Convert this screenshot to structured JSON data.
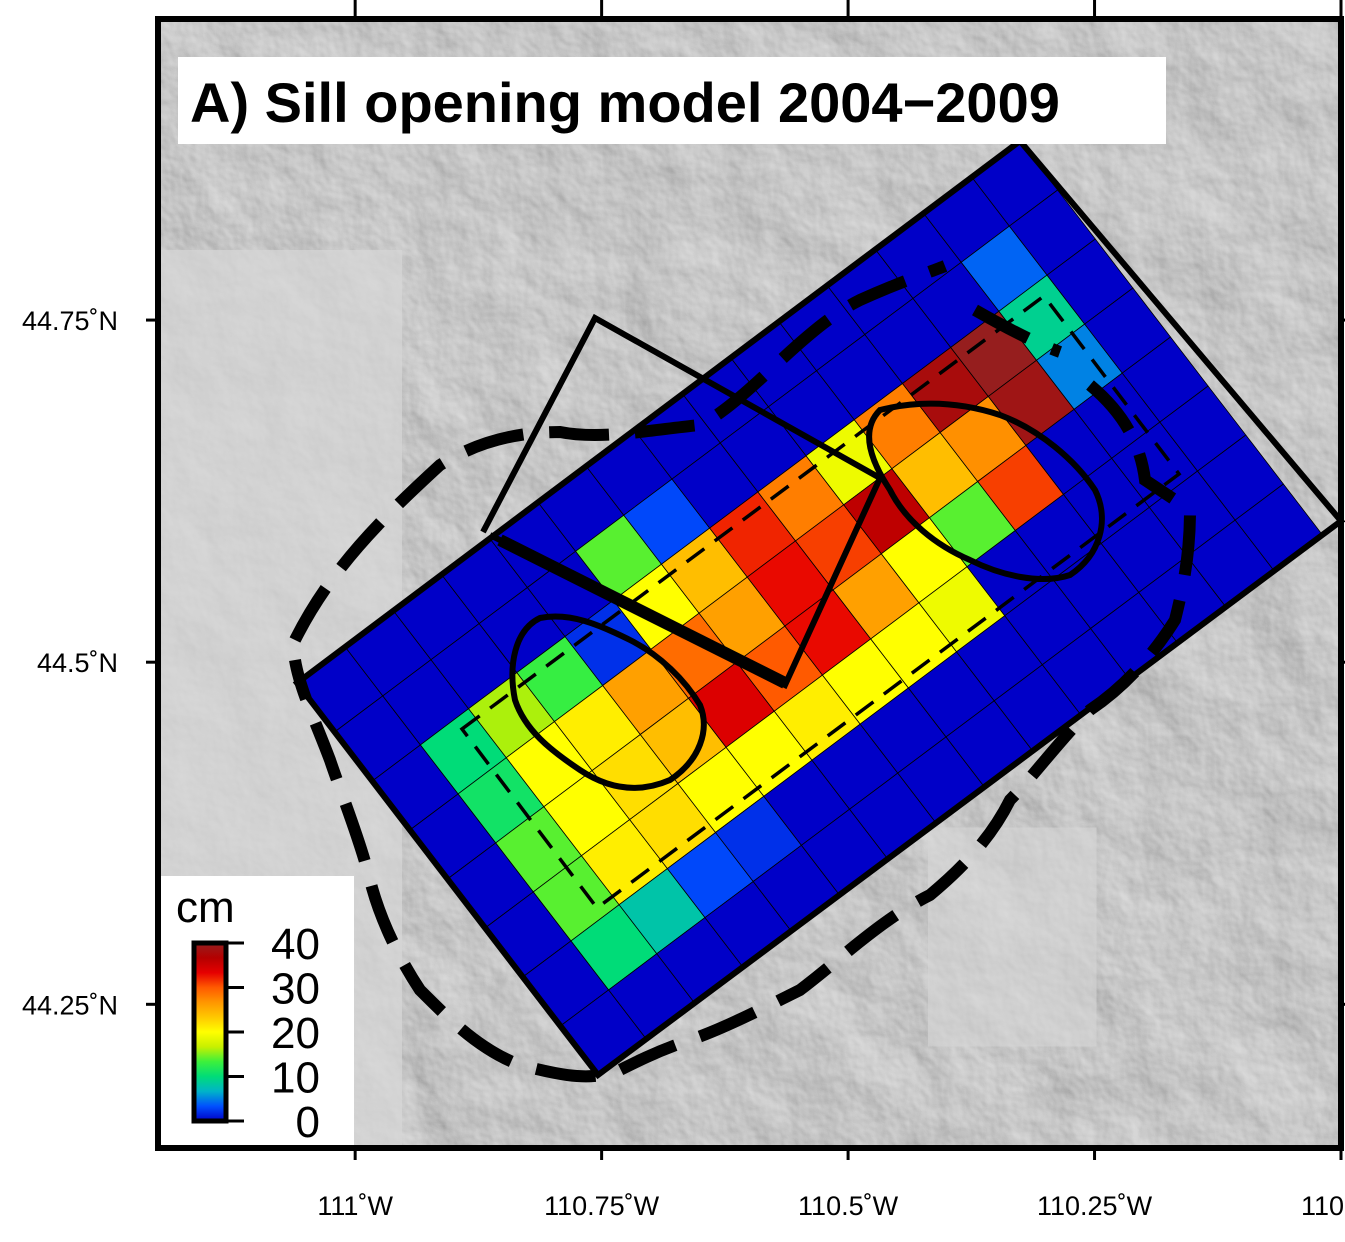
{
  "title": "A) Sill opening model 2004−2009",
  "x_axis": {
    "tick_labels": [
      "111˚W",
      "110.75˚W",
      "110.5˚W",
      "110.25˚W",
      "110"
    ],
    "tick_values": [
      -111.0,
      -110.75,
      -110.5,
      -110.25,
      -110.0
    ]
  },
  "y_axis": {
    "tick_labels": [
      "44.75˚N",
      "44.5˚N",
      "44.25˚N"
    ],
    "tick_values": [
      44.75,
      44.5,
      44.25
    ]
  },
  "colorbar": {
    "unit": "cm",
    "tick_labels": [
      "40",
      "30",
      "20",
      "10",
      "0"
    ],
    "range": [
      0,
      40
    ],
    "colors": [
      "#0000c8",
      "#0050ff",
      "#00b4c8",
      "#00dc78",
      "#3cf03c",
      "#c8f000",
      "#ffff00",
      "#ffc800",
      "#ff9600",
      "#ff5a00",
      "#e60000",
      "#b40000",
      "#961e1e"
    ]
  },
  "basemap": "shaded-relief-gray",
  "model_grid": {
    "rows": 8,
    "cols": 15,
    "opening_cm": [
      [
        0,
        0,
        0,
        0,
        0,
        0,
        0,
        0,
        0,
        0,
        0,
        0,
        0,
        0,
        0
      ],
      [
        0,
        0,
        0,
        0,
        0,
        14,
        3,
        0,
        0,
        0,
        0,
        0,
        0,
        4,
        0
      ],
      [
        0,
        10,
        16,
        13,
        2,
        20,
        24,
        32,
        28,
        19,
        28,
        38,
        40,
        9,
        0
      ],
      [
        0,
        11,
        20,
        21,
        26,
        29,
        26,
        33,
        31,
        36,
        24,
        27,
        39,
        5,
        0
      ],
      [
        0,
        14,
        20,
        22,
        24,
        34,
        30,
        33,
        26,
        20,
        14,
        31,
        0,
        0,
        0
      ],
      [
        0,
        14,
        21,
        22,
        20,
        20,
        21,
        20,
        20,
        19,
        0,
        0,
        0,
        0,
        0
      ],
      [
        0,
        10,
        8,
        3,
        2,
        0,
        0,
        0,
        0,
        0,
        0,
        0,
        0,
        0,
        0
      ],
      [
        0,
        0,
        0,
        0,
        0,
        0,
        0,
        0,
        0,
        0,
        0,
        0,
        0,
        0,
        0
      ]
    ]
  }
}
